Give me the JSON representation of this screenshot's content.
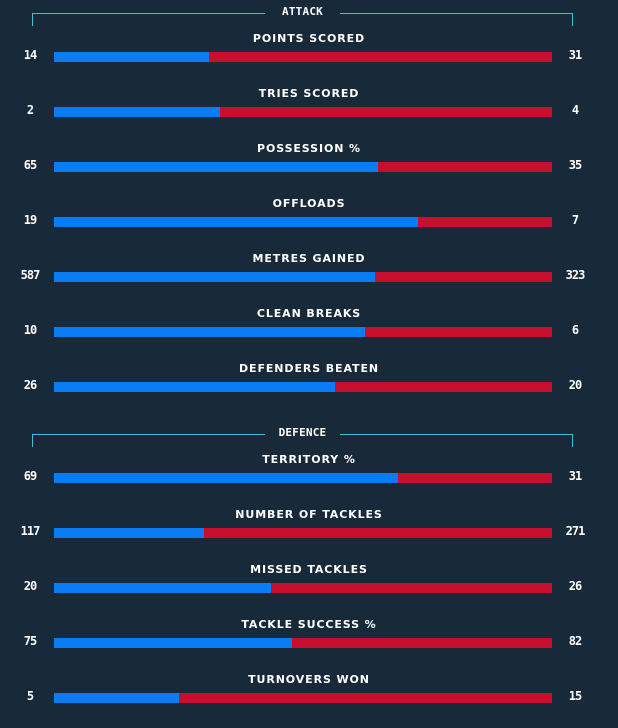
{
  "colors": {
    "background": "#18293a",
    "home_bar": "#0a7cf4",
    "away_bar": "#c8102e",
    "bracket": "#3fc0d8"
  },
  "sections": [
    {
      "title": "ATTACK",
      "stats": [
        {
          "label": "POINTS SCORED",
          "home": "14",
          "away": "31",
          "home_share": 0.311
        },
        {
          "label": "TRIES SCORED",
          "home": "2",
          "away": "4",
          "home_share": 0.333
        },
        {
          "label": "POSSESSION %",
          "home": "65",
          "away": "35",
          "home_share": 0.65
        },
        {
          "label": "OFFLOADS",
          "home": "19",
          "away": "7",
          "home_share": 0.731
        },
        {
          "label": "METRES GAINED",
          "home": "587",
          "away": "323",
          "home_share": 0.645
        },
        {
          "label": "CLEAN BREAKS",
          "home": "10",
          "away": "6",
          "home_share": 0.625
        },
        {
          "label": "DEFENDERS BEATEN",
          "home": "26",
          "away": "20",
          "home_share": 0.565
        }
      ]
    },
    {
      "title": "DEFENCE",
      "stats": [
        {
          "label": "TERRITORY %",
          "home": "69",
          "away": "31",
          "home_share": 0.69
        },
        {
          "label": "NUMBER OF TACKLES",
          "home": "117",
          "away": "271",
          "home_share": 0.302
        },
        {
          "label": "MISSED TACKLES",
          "home": "20",
          "away": "26",
          "home_share": 0.435
        },
        {
          "label": "TACKLE SUCCESS %",
          "home": "75",
          "away": "82",
          "home_share": 0.478
        },
        {
          "label": "TURNOVERS WON",
          "home": "5",
          "away": "15",
          "home_share": 0.25
        }
      ]
    }
  ]
}
